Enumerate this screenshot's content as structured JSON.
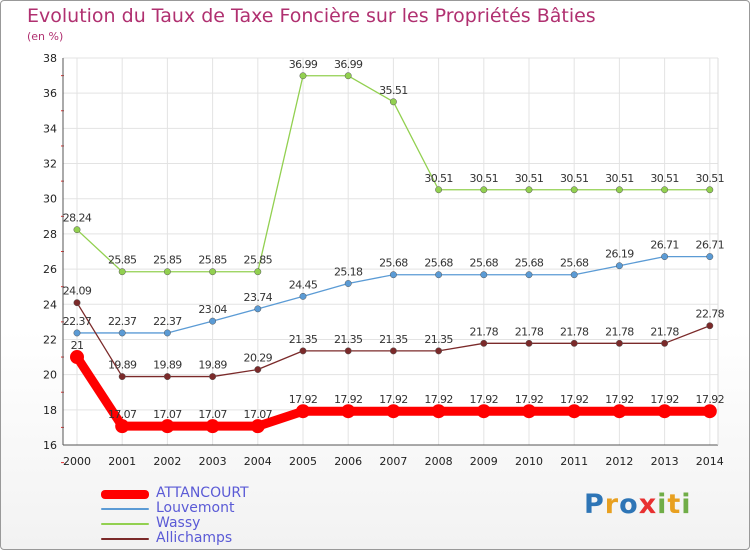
{
  "header": {
    "title": "Evolution du Taux de Taxe Foncière sur les Propriétés Bâties",
    "subtitle": "(en %)"
  },
  "chart_data": {
    "type": "line",
    "title": "Evolution du Taux de Taxe Foncière sur les Propriétés Bâties",
    "ylabel": "(en %)",
    "xlabel": "",
    "ylim": [
      16,
      38
    ],
    "yticks": [
      16,
      18,
      20,
      22,
      24,
      26,
      28,
      30,
      32,
      34,
      36,
      38
    ],
    "grid": true,
    "legend_position": "bottom-left",
    "categories": [
      "2000",
      "2001",
      "2002",
      "2003",
      "2004",
      "2005",
      "2006",
      "2007",
      "2008",
      "2009",
      "2010",
      "2011",
      "2012",
      "2013",
      "2014"
    ],
    "series": [
      {
        "name": "ATTANCOURT",
        "color": "#ff0000",
        "values": [
          21,
          17.07,
          17.07,
          17.07,
          17.07,
          17.92,
          17.92,
          17.92,
          17.92,
          17.92,
          17.92,
          17.92,
          17.92,
          17.92,
          17.92
        ],
        "labels": [
          "21",
          "17.07",
          "17.07",
          "17.07",
          "17.07",
          "17.92",
          "17.92",
          "17.92",
          "17.92",
          "17.92",
          "17.92",
          "17.92",
          "17.92",
          "17.92",
          "17.92"
        ]
      },
      {
        "name": "Louvemont",
        "color": "#5b9bd5",
        "values": [
          22.37,
          22.37,
          22.37,
          23.04,
          23.74,
          24.45,
          25.18,
          25.68,
          25.68,
          25.68,
          25.68,
          25.68,
          26.19,
          26.71,
          26.71
        ],
        "labels": [
          "22.37",
          "22.37",
          "22.37",
          "23.04",
          "23.74",
          "24.45",
          "25.18",
          "25.68",
          "25.68",
          "25.68",
          "25.68",
          "25.68",
          "26.19",
          "26.71",
          "26.71"
        ]
      },
      {
        "name": "Wassy",
        "color": "#92d050",
        "values": [
          28.24,
          25.85,
          25.85,
          25.85,
          25.85,
          36.99,
          36.99,
          35.51,
          30.51,
          30.51,
          30.51,
          30.51,
          30.51,
          30.51,
          30.51
        ],
        "labels": [
          "28.24",
          "25.85",
          "25.85",
          "25.85",
          "25.85",
          "36.99",
          "36.99",
          "35.51",
          "30.51",
          "30.51",
          "30.51",
          "30.51",
          "30.51",
          "30.51",
          "30.51"
        ]
      },
      {
        "name": "Allichamps",
        "color": "#7b2a2a",
        "values": [
          24.09,
          19.89,
          19.89,
          19.89,
          20.29,
          21.35,
          21.35,
          21.35,
          21.35,
          21.78,
          21.78,
          21.78,
          21.78,
          21.78,
          22.78
        ],
        "labels": [
          "24.09",
          "19.89",
          "19.89",
          "19.89",
          "20.29",
          "21.35",
          "21.35",
          "21.35",
          "21.35",
          "21.78",
          "21.78",
          "21.78",
          "21.78",
          "21.78",
          "22.78"
        ]
      }
    ]
  },
  "logo": {
    "letters": [
      "P",
      "r",
      "o",
      "x",
      "i",
      "t",
      "i"
    ],
    "colors": [
      "#2e75b6",
      "#e8a020",
      "#2e75b6",
      "#e83030",
      "#70ad47",
      "#e8a020",
      "#70ad47"
    ]
  }
}
